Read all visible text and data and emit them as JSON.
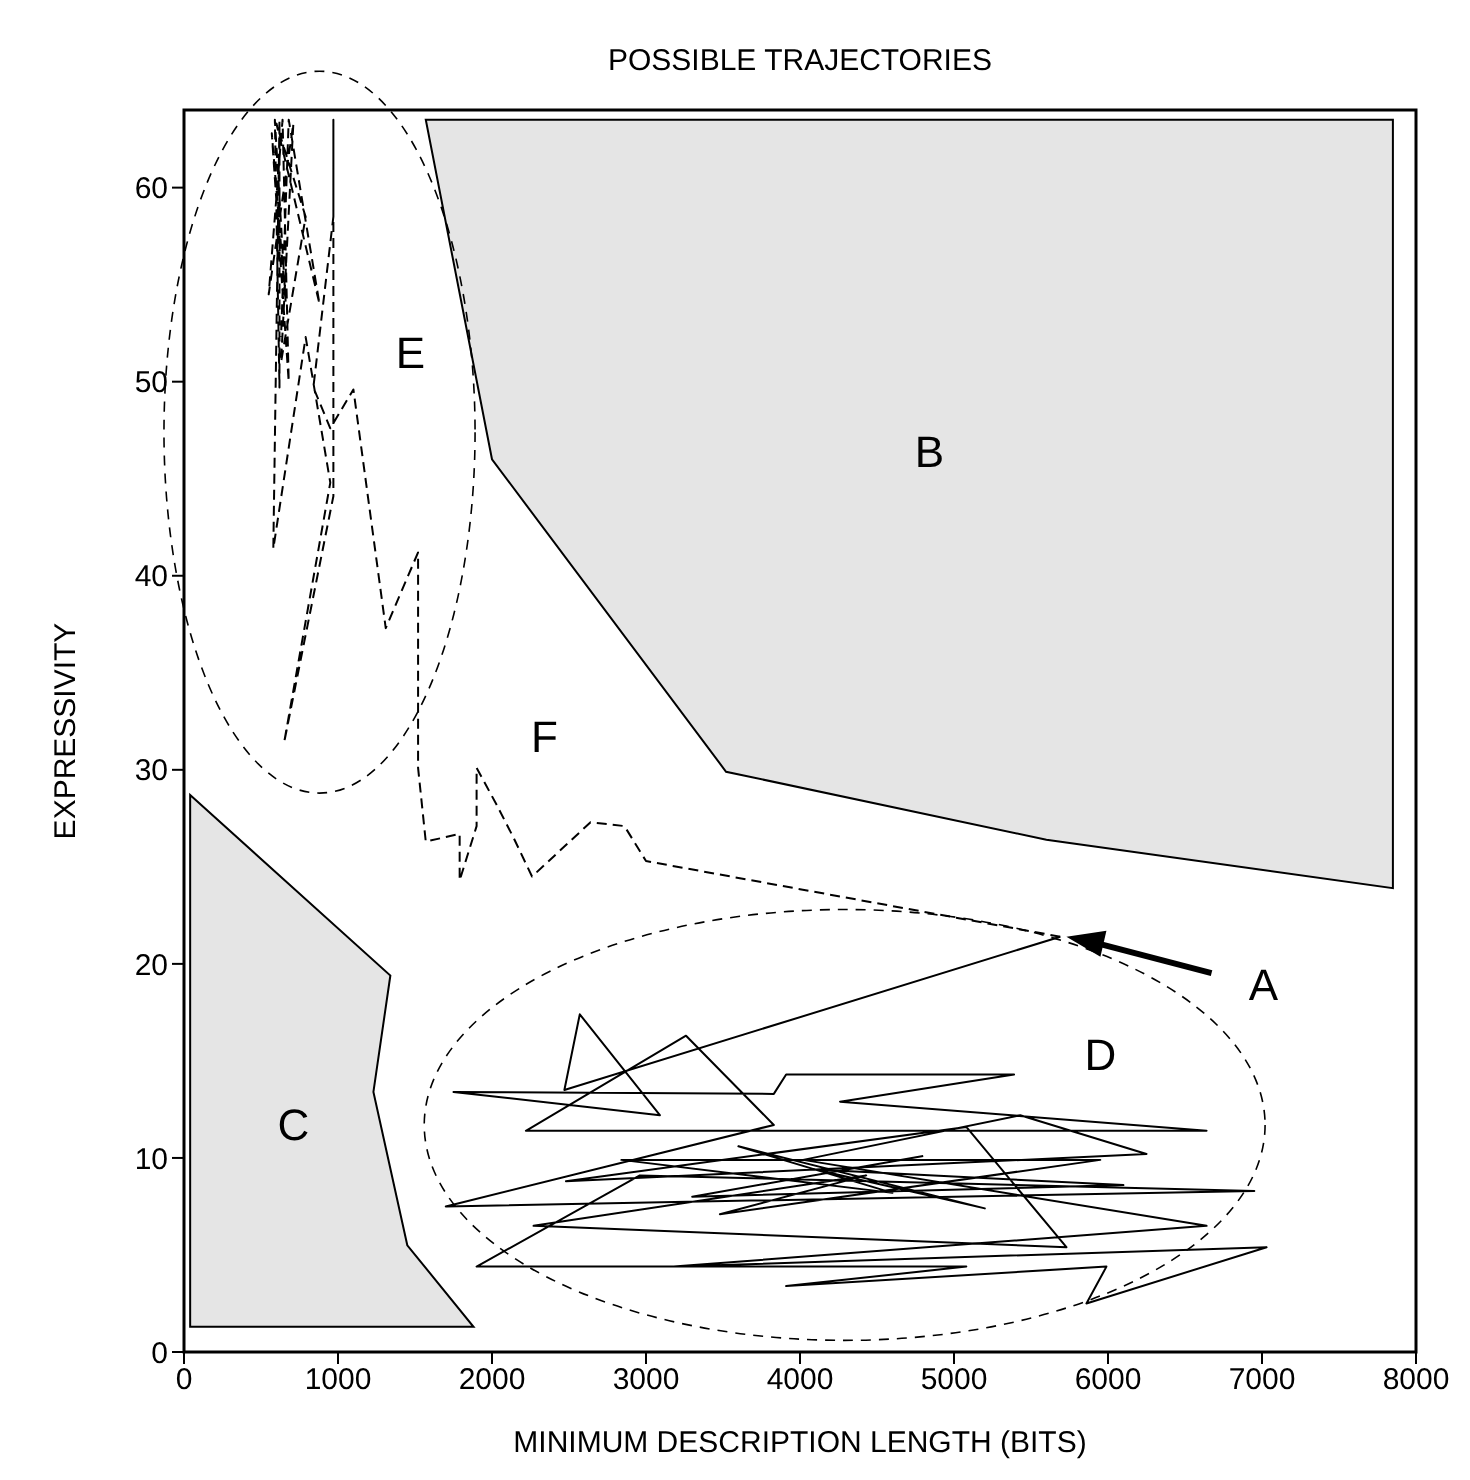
{
  "chart_data": {
    "type": "line",
    "title": "POSSIBLE TRAJECTORIES",
    "xlabel": "MINIMUM DESCRIPTION LENGTH (BITS)",
    "ylabel": "EXPRESSIVITY",
    "xlim": [
      0,
      8000
    ],
    "xticks": [
      0,
      1000,
      2000,
      3000,
      4000,
      5000,
      6000,
      7000,
      8000
    ],
    "ylim": [
      0,
      64
    ],
    "yticks": [
      0,
      10,
      20,
      30,
      40,
      50,
      60
    ],
    "series": [
      {
        "type": "area",
        "color": "#e5e5e5",
        "x": [
          1570,
          7850,
          7850,
          5600,
          3520,
          2000
        ],
        "values": [
          63.5,
          63.5,
          23.9,
          26.4,
          29.9,
          46
        ]
      },
      {
        "type": "area",
        "color": "#e5e5e5",
        "x": [
          40,
          1340,
          1230,
          1450,
          1880,
          40
        ],
        "values": [
          28.7,
          19.4,
          13.4,
          5.5,
          1.3,
          1.3
        ]
      },
      {
        "line_style": "dashed",
        "color": "#000000",
        "x": [
          5690,
          3000,
          2860,
          2640,
          2260,
          2140,
          2030,
          1900,
          1900,
          1790,
          1790,
          1570,
          1520,
          1520,
          1310,
          1100,
          950,
          840,
          970,
          970,
          970,
          650,
          950,
          790,
          580,
          620,
          620,
          590,
          660,
          570,
          680,
          640,
          550,
          710,
          630,
          790,
          600,
          880,
          680,
          630
        ],
        "values": [
          21.4,
          25.3,
          27.1,
          27.3,
          24.5,
          26.5,
          28.2,
          30.1,
          27.1,
          24.3,
          26.7,
          26.3,
          30.1,
          41.2,
          37.3,
          49.6,
          47.6,
          49.7,
          58.5,
          63.5,
          44.1,
          31.4,
          44.8,
          52.3,
          41.4,
          63.5,
          49.7,
          63.5,
          54.1,
          62.8,
          50,
          63.5,
          54.5,
          63.3,
          51,
          58.5,
          63.3,
          54,
          63.5,
          52.3
        ]
      },
      {
        "line_style": "solid",
        "color": "#000000",
        "x": [
          5690,
          2470,
          2570,
          3090,
          1750,
          3830,
          3910,
          5390,
          4260,
          6640,
          2220,
          3260,
          3830,
          1700,
          6950,
          2960,
          1900,
          5080,
          3910,
          5990,
          5860,
          7030,
          3180,
          6640,
          4020,
          5430,
          6250,
          2480,
          5080,
          5730,
          2270,
          4430,
          3480,
          5950,
          2840,
          4600,
          3600,
          5200,
          4100,
          6100,
          3300,
          4800
        ],
        "values": [
          21.4,
          13.5,
          17.4,
          12.2,
          13.4,
          13.3,
          14.3,
          14.3,
          12.9,
          11.4,
          11.4,
          16.3,
          11.7,
          7.5,
          8.3,
          9.1,
          4.4,
          4.4,
          3.4,
          4.4,
          2.5,
          5.4,
          4.4,
          6.5,
          9.9,
          12.2,
          10.2,
          8.8,
          11.6,
          5.4,
          6.5,
          9.1,
          7.1,
          9.9,
          9.9,
          8.2,
          10.6,
          7.4,
          9.4,
          8.6,
          8,
          10.1
        ]
      }
    ],
    "annotations": [
      "A",
      "B",
      "C",
      "D",
      "E",
      "F"
    ]
  }
}
